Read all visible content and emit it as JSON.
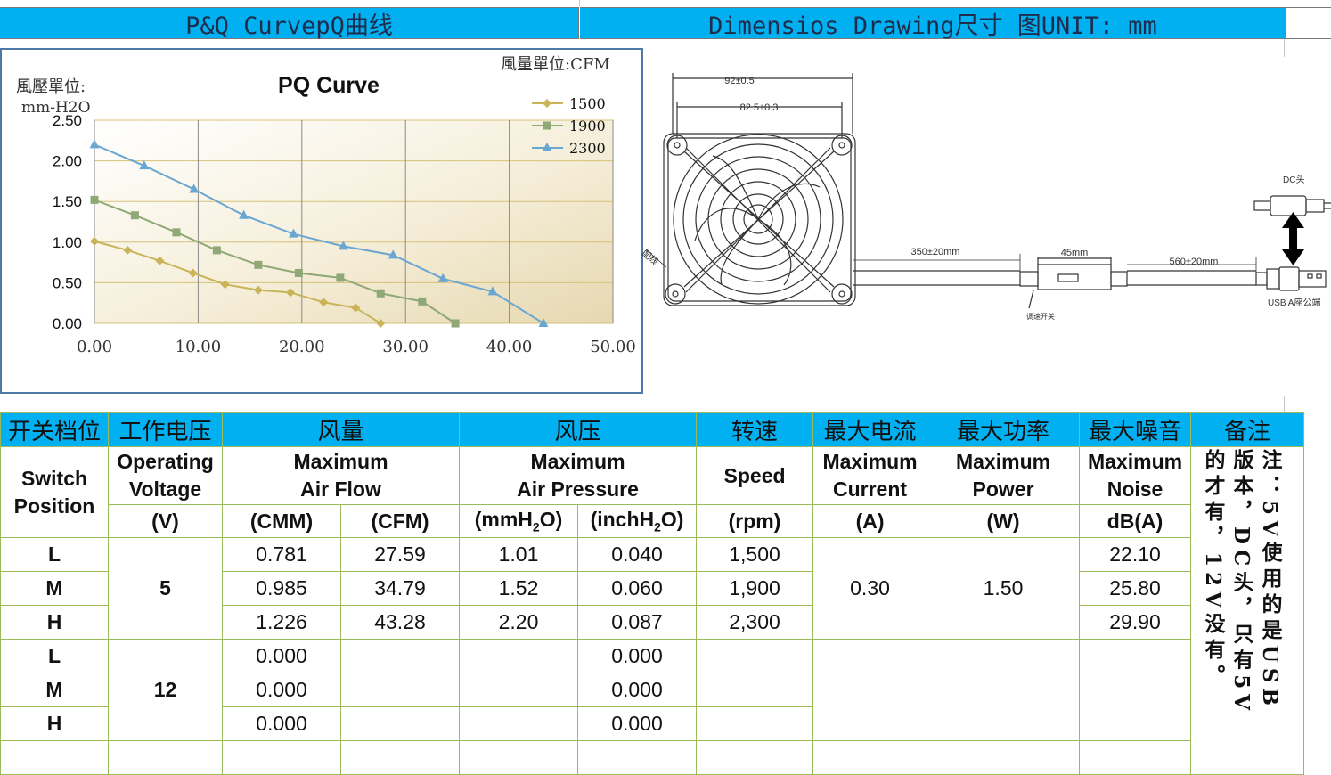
{
  "headers": {
    "left": "P&Q CurvepQ曲线",
    "right": "Dimensios Drawing尺寸 图UNIT: mm"
  },
  "chart_data": {
    "type": "line",
    "title": "PQ Curve",
    "ylabel_line1": "風壓單位:",
    "ylabel_line2": "mm-H2O",
    "xunit_label": "風量單位:CFM",
    "xlim": [
      0,
      50
    ],
    "ylim": [
      0,
      2.5
    ],
    "xticks": [
      "0.00",
      "10.00",
      "20.00",
      "30.00",
      "40.00",
      "50.00"
    ],
    "yticks": [
      "0.00",
      "0.50",
      "1.00",
      "1.50",
      "2.00",
      "2.50"
    ],
    "grid": true,
    "legend_position": "top-right",
    "series": [
      {
        "name": "1500",
        "color": "#c9b458",
        "marker": "diamond",
        "points": [
          [
            0,
            1.01
          ],
          [
            3.2,
            0.9
          ],
          [
            6.3,
            0.77
          ],
          [
            9.5,
            0.62
          ],
          [
            12.6,
            0.48
          ],
          [
            15.8,
            0.41
          ],
          [
            18.9,
            0.38
          ],
          [
            22.1,
            0.26
          ],
          [
            25.2,
            0.19
          ],
          [
            27.6,
            0.0
          ]
        ]
      },
      {
        "name": "1900",
        "color": "#8fa876",
        "marker": "square",
        "points": [
          [
            0,
            1.52
          ],
          [
            3.9,
            1.33
          ],
          [
            7.9,
            1.12
          ],
          [
            11.8,
            0.9
          ],
          [
            15.8,
            0.72
          ],
          [
            19.7,
            0.62
          ],
          [
            23.7,
            0.56
          ],
          [
            27.6,
            0.37
          ],
          [
            31.6,
            0.27
          ],
          [
            34.8,
            0.0
          ]
        ]
      },
      {
        "name": "2300",
        "color": "#6aa6d2",
        "marker": "triangle",
        "points": [
          [
            0,
            2.2
          ],
          [
            4.8,
            1.94
          ],
          [
            9.6,
            1.65
          ],
          [
            14.4,
            1.33
          ],
          [
            19.2,
            1.1
          ],
          [
            24.0,
            0.95
          ],
          [
            28.8,
            0.84
          ],
          [
            33.6,
            0.55
          ],
          [
            38.4,
            0.39
          ],
          [
            43.3,
            0.0
          ]
        ]
      }
    ]
  },
  "drawing": {
    "dim_92": "92±0.5",
    "dim_82": "82.5±0.3",
    "dim_350": "350±20mm",
    "dim_45": "45mm",
    "dim_560": "560±20mm",
    "dc_label": "DC头",
    "usb_label": "USB A座公端",
    "switch_label": "调速开关",
    "side_label": "配线"
  },
  "table": {
    "head_cn": [
      "开关档位",
      "工作电压",
      "风量",
      "风压",
      "转速",
      "最大电流",
      "最大功率",
      "最大噪音",
      "备注"
    ],
    "switch_l1": "Switch",
    "switch_l2": "Position",
    "voltage_l1": "Operating",
    "voltage_l2": "Voltage",
    "airflow_l1": "Maximum",
    "airflow_l2": "Air Flow",
    "pressure_l1": "Maximum",
    "pressure_l2": "Air Pressure",
    "speed": "Speed",
    "current_l1": "Maximum",
    "current_l2": "Current",
    "power_l1": "Maximum",
    "power_l2": "Power",
    "noise_l1": "Maximum",
    "noise_l2": "Noise",
    "units": {
      "voltage": "(V)",
      "cmm": "(CMM)",
      "cfm": "(CFM)",
      "mmh2o_pre": "(mmH",
      "mmh2o_sub": "2",
      "mmh2o_post": "O)",
      "inch_pre": "(inchH",
      "inch_sub": "2",
      "inch_post": "O)",
      "rpm": "(rpm)",
      "amp": "(A)",
      "watt": "(W)",
      "dba": "dB(A)"
    },
    "group5": {
      "voltage": "5",
      "current": "0.30",
      "power": "1.50",
      "rows": [
        {
          "pos": "L",
          "cmm": "0.781",
          "cfm": "27.59",
          "mm": "1.01",
          "inch": "0.040",
          "rpm": "1,500",
          "noise": "22.10"
        },
        {
          "pos": "M",
          "cmm": "0.985",
          "cfm": "34.79",
          "mm": "1.52",
          "inch": "0.060",
          "rpm": "1,900",
          "noise": "25.80"
        },
        {
          "pos": "H",
          "cmm": "1.226",
          "cfm": "43.28",
          "mm": "2.20",
          "inch": "0.087",
          "rpm": "2,300",
          "noise": "29.90"
        }
      ]
    },
    "group12": {
      "voltage": "12",
      "rows": [
        {
          "pos": "L",
          "cmm": "0.000",
          "inch": "0.000"
        },
        {
          "pos": "M",
          "cmm": "0.000",
          "inch": "0.000"
        },
        {
          "pos": "H",
          "cmm": "0.000",
          "inch": "0.000"
        }
      ]
    },
    "note": "注：5V使用的是USB版本，DC头，只有5V的才有，12V没有。"
  }
}
